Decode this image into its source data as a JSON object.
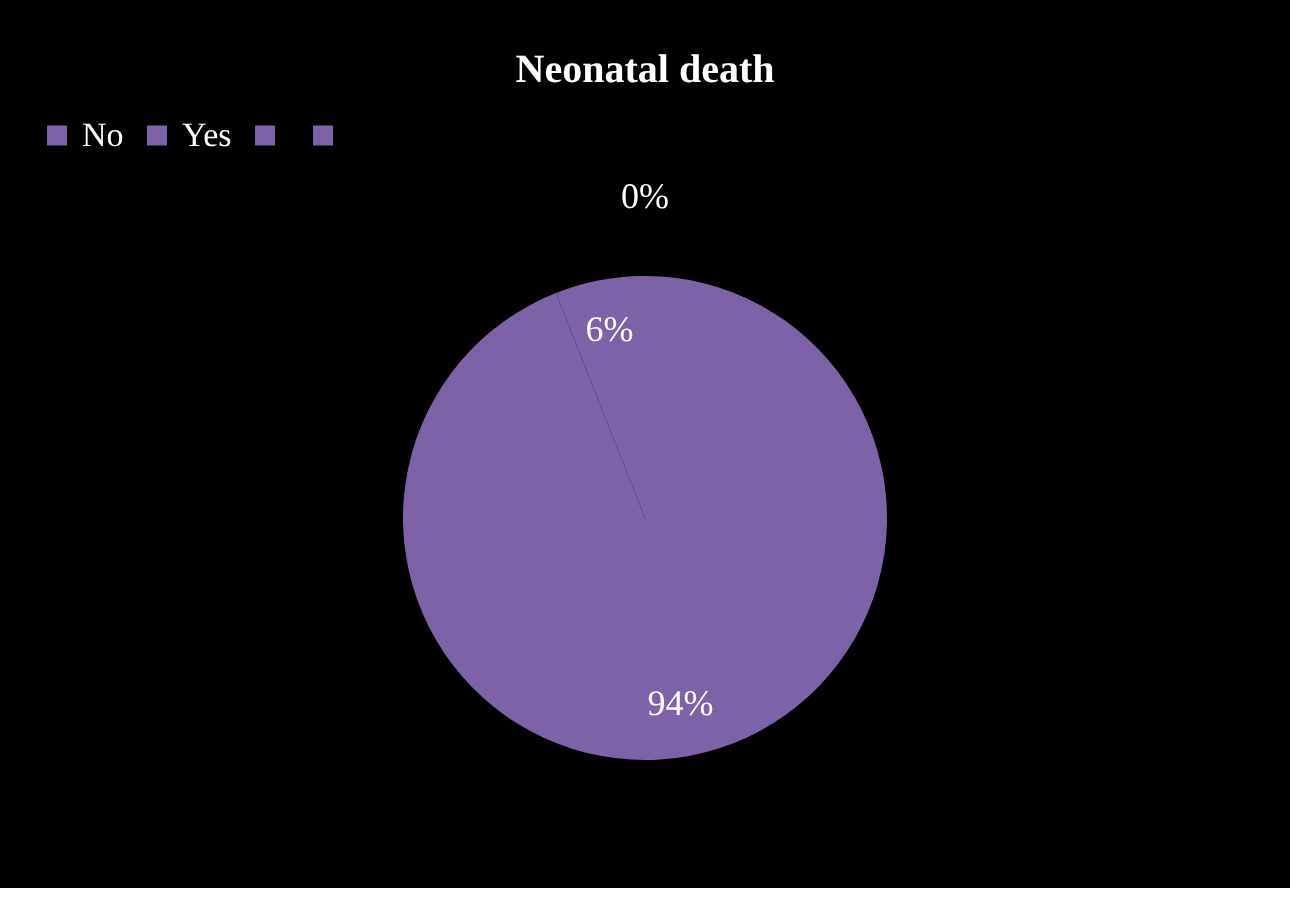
{
  "chart_data": {
    "type": "pie",
    "title": "Neonatal death",
    "categories": [
      "No",
      "Yes",
      null,
      null
    ],
    "values": [
      94,
      6,
      0,
      0
    ],
    "value_labels": [
      "94%",
      "6%",
      "0%",
      null
    ],
    "colors": [
      "#7d62a8",
      "#7d62a8",
      "#7d62a8",
      "#7d62a8"
    ],
    "legend": "top"
  }
}
